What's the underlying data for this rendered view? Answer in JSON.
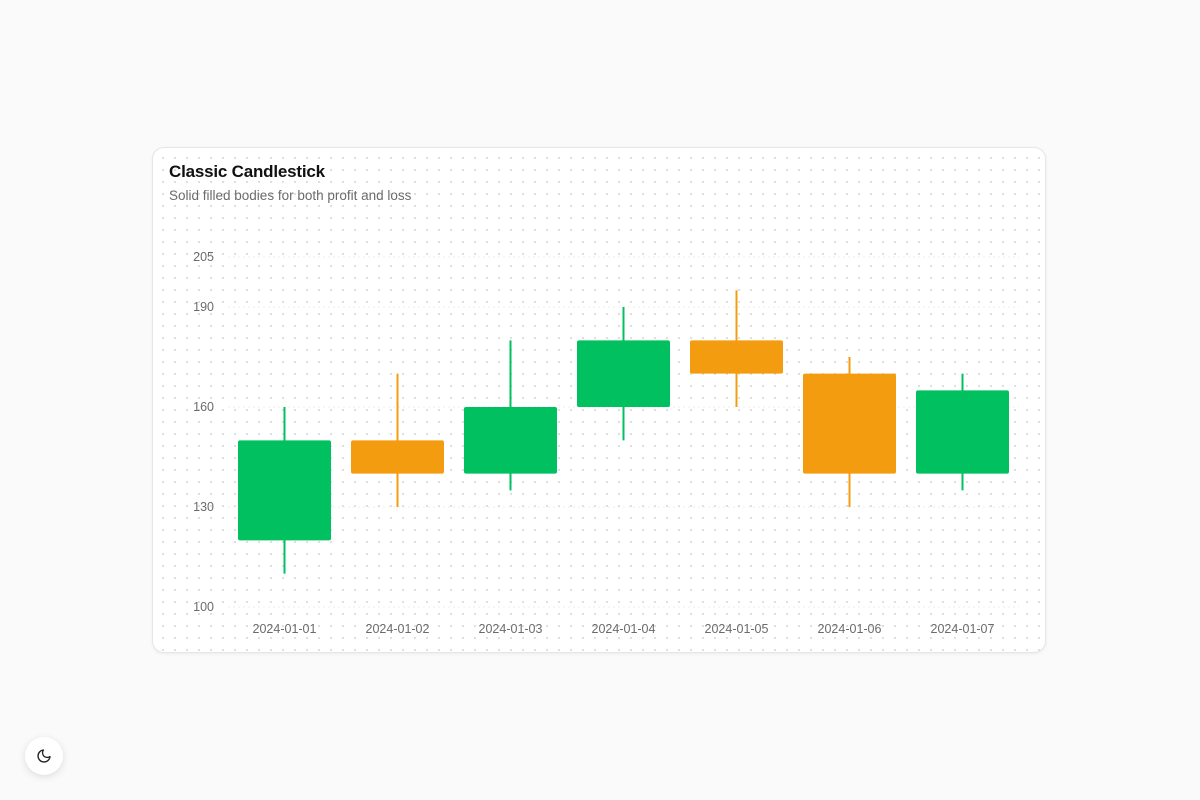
{
  "header": {
    "title": "Classic Candlestick",
    "subtitle": "Solid filled bodies for both profit and loss"
  },
  "theme_toggle": {
    "icon": "moon-icon"
  },
  "colors": {
    "up": "#00c060",
    "down": "#f39c0f",
    "grid": "#eeeeee",
    "tick_text": "#6b6b6b"
  },
  "chart_data": {
    "type": "candlestick",
    "title": "Classic Candlestick",
    "subtitle": "Solid filled bodies for both profit and loss",
    "categories": [
      "2024-01-01",
      "2024-01-02",
      "2024-01-03",
      "2024-01-04",
      "2024-01-05",
      "2024-01-06",
      "2024-01-07"
    ],
    "series": [
      {
        "open": [
          120,
          150,
          140,
          160,
          180,
          170,
          140
        ],
        "high": [
          160,
          170,
          180,
          190,
          195,
          175,
          170
        ],
        "low": [
          110,
          130,
          135,
          150,
          160,
          130,
          135
        ],
        "close": [
          150,
          140,
          160,
          180,
          170,
          140,
          165
        ]
      }
    ],
    "y_ticks": [
      100,
      130,
      160,
      190,
      205
    ],
    "ylim": [
      100,
      205
    ],
    "grid": true,
    "legend": false
  }
}
